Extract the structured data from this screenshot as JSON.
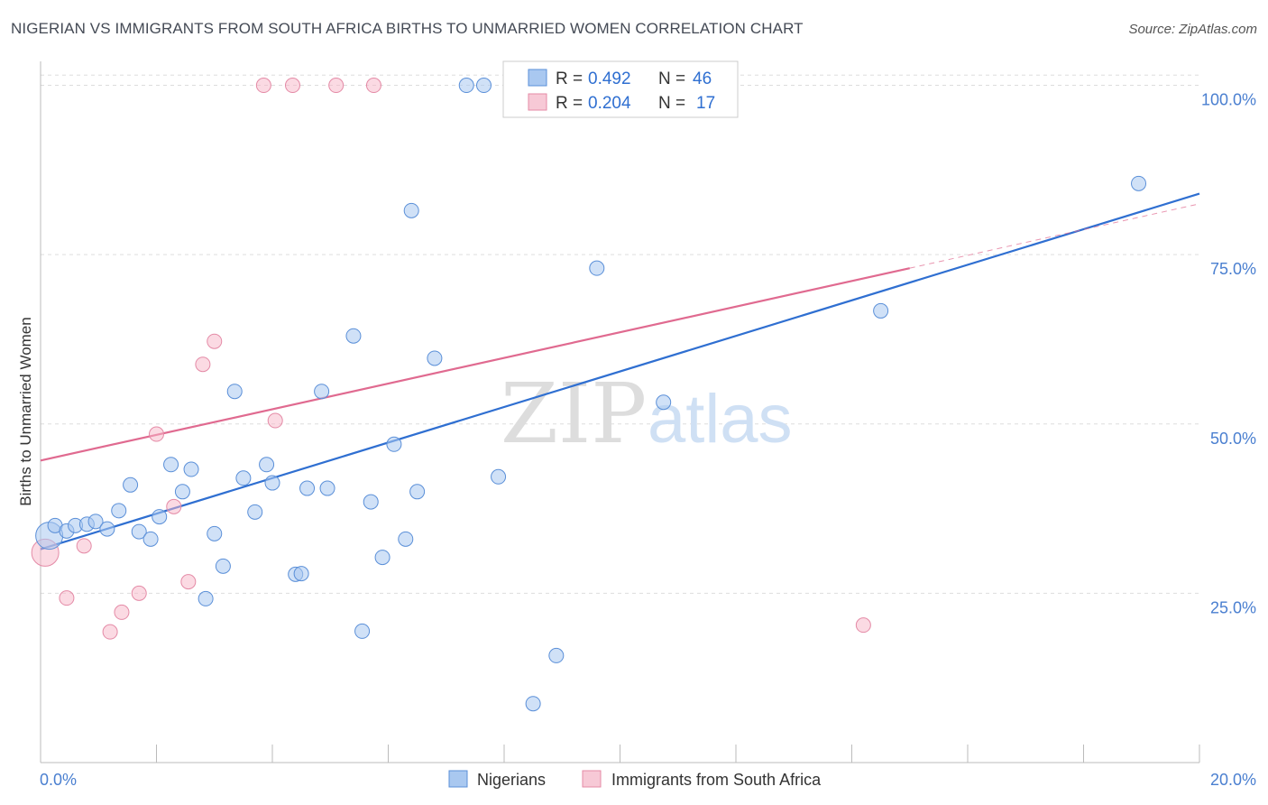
{
  "header": {
    "title": "NIGERIAN VS IMMIGRANTS FROM SOUTH AFRICA BIRTHS TO UNMARRIED WOMEN CORRELATION CHART",
    "source": "Source: ZipAtlas.com"
  },
  "watermark": {
    "zip": "ZIP",
    "atlas": "atlas"
  },
  "legend_box": {
    "rows": [
      {
        "r_label": "R =",
        "r_value": "0.492",
        "n_label": "N =",
        "n_value": "46",
        "color": "#a9c8f0"
      },
      {
        "r_label": "R =",
        "r_value": "0.204",
        "n_label": "N =",
        "n_value": "17",
        "color": "#f7b6c8"
      }
    ]
  },
  "bottom_legend": {
    "items": [
      {
        "label": "Nigerians",
        "color": "#a9c8f0"
      },
      {
        "label": "Immigrants from South Africa",
        "color": "#f7b6c8"
      }
    ]
  },
  "chart_data": {
    "type": "scatter",
    "title": "NIGERIAN VS IMMIGRANTS FROM SOUTH AFRICA BIRTHS TO UNMARRIED WOMEN CORRELATION CHART",
    "xlabel": "",
    "ylabel": "Births to Unmarried Women",
    "xlim": [
      0,
      20
    ],
    "ylim": [
      0,
      105
    ],
    "x_tick_labels": [
      "0.0%",
      "20.0%"
    ],
    "y_ticks": [
      25,
      50,
      75,
      100
    ],
    "y_tick_labels": [
      "25.0%",
      "50.0%",
      "75.0%",
      "100.0%"
    ],
    "grid": true,
    "series": [
      {
        "name": "Nigerians",
        "color": "#a9c8f0",
        "stroke": "#5a8fd8",
        "line_color": "#2f6fd1",
        "trend": {
          "x": [
            0,
            20
          ],
          "y": [
            31.5,
            84.0
          ]
        },
        "points": [
          {
            "x": 0.15,
            "y": 33.5,
            "big": true
          },
          {
            "x": 0.25,
            "y": 35.0
          },
          {
            "x": 0.45,
            "y": 34.2
          },
          {
            "x": 0.6,
            "y": 35.0
          },
          {
            "x": 0.8,
            "y": 35.2
          },
          {
            "x": 0.95,
            "y": 35.6
          },
          {
            "x": 1.15,
            "y": 34.5
          },
          {
            "x": 1.35,
            "y": 37.2
          },
          {
            "x": 1.55,
            "y": 41.0
          },
          {
            "x": 1.7,
            "y": 34.1
          },
          {
            "x": 1.9,
            "y": 33.0
          },
          {
            "x": 2.05,
            "y": 36.3
          },
          {
            "x": 2.25,
            "y": 44.0
          },
          {
            "x": 2.45,
            "y": 40.0
          },
          {
            "x": 2.6,
            "y": 43.3
          },
          {
            "x": 2.85,
            "y": 24.2
          },
          {
            "x": 3.0,
            "y": 33.8
          },
          {
            "x": 3.15,
            "y": 29.0
          },
          {
            "x": 3.35,
            "y": 54.8
          },
          {
            "x": 3.5,
            "y": 42.0
          },
          {
            "x": 3.7,
            "y": 37.0
          },
          {
            "x": 3.9,
            "y": 44.0
          },
          {
            "x": 4.0,
            "y": 41.3
          },
          {
            "x": 4.4,
            "y": 27.8
          },
          {
            "x": 4.5,
            "y": 27.9
          },
          {
            "x": 4.6,
            "y": 40.5
          },
          {
            "x": 4.85,
            "y": 54.8
          },
          {
            "x": 4.95,
            "y": 40.5
          },
          {
            "x": 5.4,
            "y": 63.0
          },
          {
            "x": 5.55,
            "y": 19.4
          },
          {
            "x": 5.7,
            "y": 38.5
          },
          {
            "x": 5.9,
            "y": 30.3
          },
          {
            "x": 6.1,
            "y": 47.0
          },
          {
            "x": 6.3,
            "y": 33.0
          },
          {
            "x": 6.4,
            "y": 81.5
          },
          {
            "x": 6.5,
            "y": 40.0
          },
          {
            "x": 6.8,
            "y": 59.7
          },
          {
            "x": 7.35,
            "y": 100.0
          },
          {
            "x": 7.65,
            "y": 100.0
          },
          {
            "x": 7.9,
            "y": 42.2
          },
          {
            "x": 8.5,
            "y": 8.7
          },
          {
            "x": 8.9,
            "y": 15.8
          },
          {
            "x": 9.6,
            "y": 73.0
          },
          {
            "x": 10.75,
            "y": 53.2
          },
          {
            "x": 14.5,
            "y": 66.7
          },
          {
            "x": 18.95,
            "y": 85.5
          }
        ]
      },
      {
        "name": "Immigrants from South Africa",
        "color": "#f7b6c8",
        "stroke": "#e48aa6",
        "line_color": "#e06a90",
        "trend": {
          "x": [
            0,
            15.0
          ],
          "y": [
            44.6,
            73.0
          ],
          "dashed_to": [
            20,
            82.5
          ]
        },
        "points": [
          {
            "x": 0.08,
            "y": 31.0,
            "big": true
          },
          {
            "x": 0.45,
            "y": 24.3
          },
          {
            "x": 0.75,
            "y": 32.0
          },
          {
            "x": 1.2,
            "y": 19.3
          },
          {
            "x": 1.4,
            "y": 22.2
          },
          {
            "x": 1.7,
            "y": 25.0
          },
          {
            "x": 2.0,
            "y": 48.5
          },
          {
            "x": 2.3,
            "y": 37.8
          },
          {
            "x": 2.55,
            "y": 26.7
          },
          {
            "x": 2.8,
            "y": 58.8
          },
          {
            "x": 3.0,
            "y": 62.2
          },
          {
            "x": 3.85,
            "y": 100.0
          },
          {
            "x": 4.05,
            "y": 50.5
          },
          {
            "x": 4.35,
            "y": 100.0
          },
          {
            "x": 5.1,
            "y": 100.0
          },
          {
            "x": 5.75,
            "y": 100.0
          },
          {
            "x": 14.2,
            "y": 20.3
          }
        ]
      }
    ]
  }
}
